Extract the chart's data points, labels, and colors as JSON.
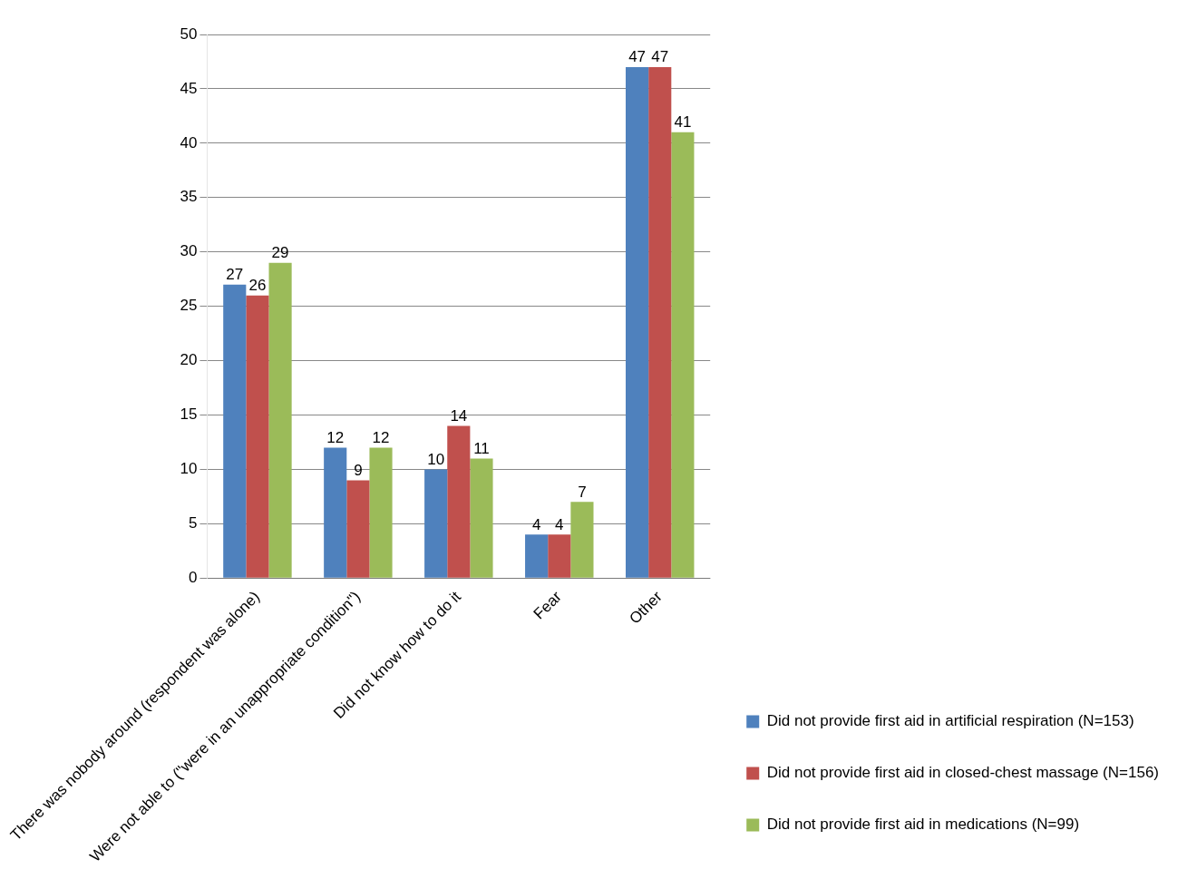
{
  "chart_data": {
    "type": "bar",
    "categories": [
      "There was nobody around (respondent was alone)",
      "Were not able to (\"were in an unappropriate condition\")",
      "Did not know how to do it",
      "Fear",
      "Other"
    ],
    "series": [
      {
        "name": "Did not provide first aid in artificial respiration (N=153)",
        "color": "#4f81bd",
        "values": [
          27,
          12,
          10,
          4,
          47
        ]
      },
      {
        "name": "Did not provide first aid in closed-chest massage (N=156)",
        "color": "#c0504d",
        "values": [
          26,
          9,
          14,
          4,
          47
        ]
      },
      {
        "name": "Did not provide first aid in medications (N=99)",
        "color": "#9bbb59",
        "values": [
          29,
          12,
          11,
          7,
          41
        ]
      }
    ],
    "ylim": [
      0,
      50
    ],
    "yticks": [
      0,
      5,
      10,
      15,
      20,
      25,
      30,
      35,
      40,
      45,
      50
    ],
    "grid": "y",
    "legend": "right",
    "data_labels": true
  }
}
